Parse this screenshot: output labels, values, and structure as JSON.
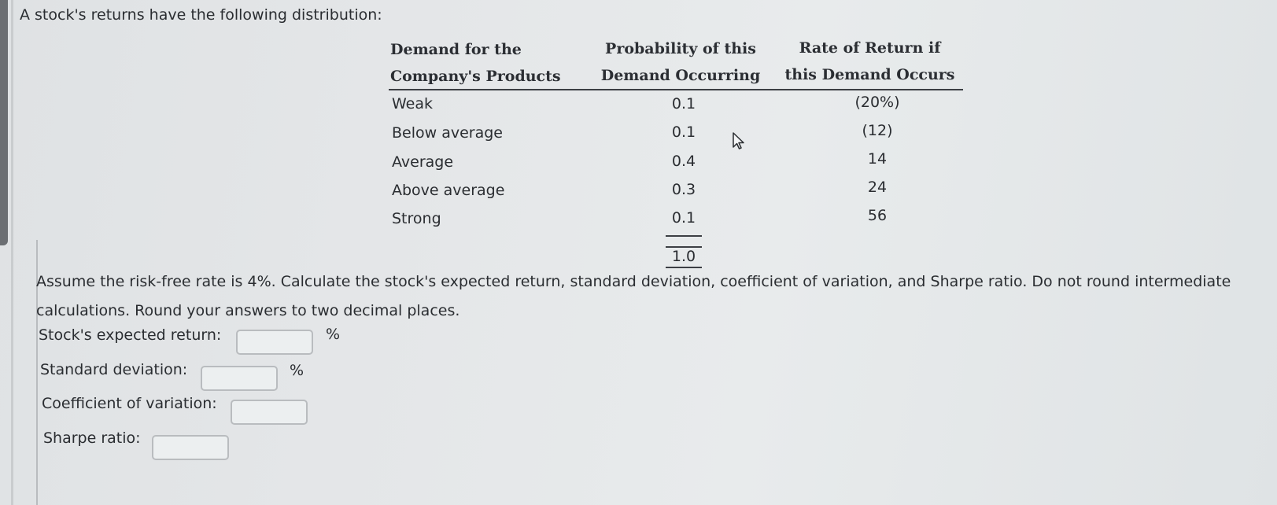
{
  "intro": "A stock's returns have the following distribution:",
  "table": {
    "headers": [
      [
        "Demand for the",
        "Company's Products"
      ],
      [
        "Probability of this",
        "Demand Occurring"
      ],
      [
        "Rate of Return if",
        "this Demand Occurs"
      ]
    ],
    "rows": [
      {
        "demand": "Weak",
        "probability": "0.1",
        "return": "(20%)"
      },
      {
        "demand": "Below average",
        "probability": "0.1",
        "return": "(12)"
      },
      {
        "demand": "Average",
        "probability": "0.4",
        "return": "14"
      },
      {
        "demand": "Above average",
        "probability": "0.3",
        "return": "24"
      },
      {
        "demand": "Strong",
        "probability": "0.1",
        "return": "56"
      }
    ],
    "total": "1.0"
  },
  "instructions": "Assume the risk-free rate is 4%. Calculate the stock's expected return, standard deviation, coefficient of variation, and Sharpe ratio. Do not round intermediate calculations. Round your answers to two decimal places.",
  "answers": [
    {
      "label": "Stock's expected return:",
      "value": "",
      "unit": "%"
    },
    {
      "label": "Standard deviation:",
      "value": "",
      "unit": "%"
    },
    {
      "label": "Coefficient of variation:",
      "value": "",
      "unit": ""
    },
    {
      "label": "Sharpe ratio:",
      "value": "",
      "unit": ""
    }
  ],
  "icons": {
    "cursor": "mouse-pointer-icon"
  }
}
